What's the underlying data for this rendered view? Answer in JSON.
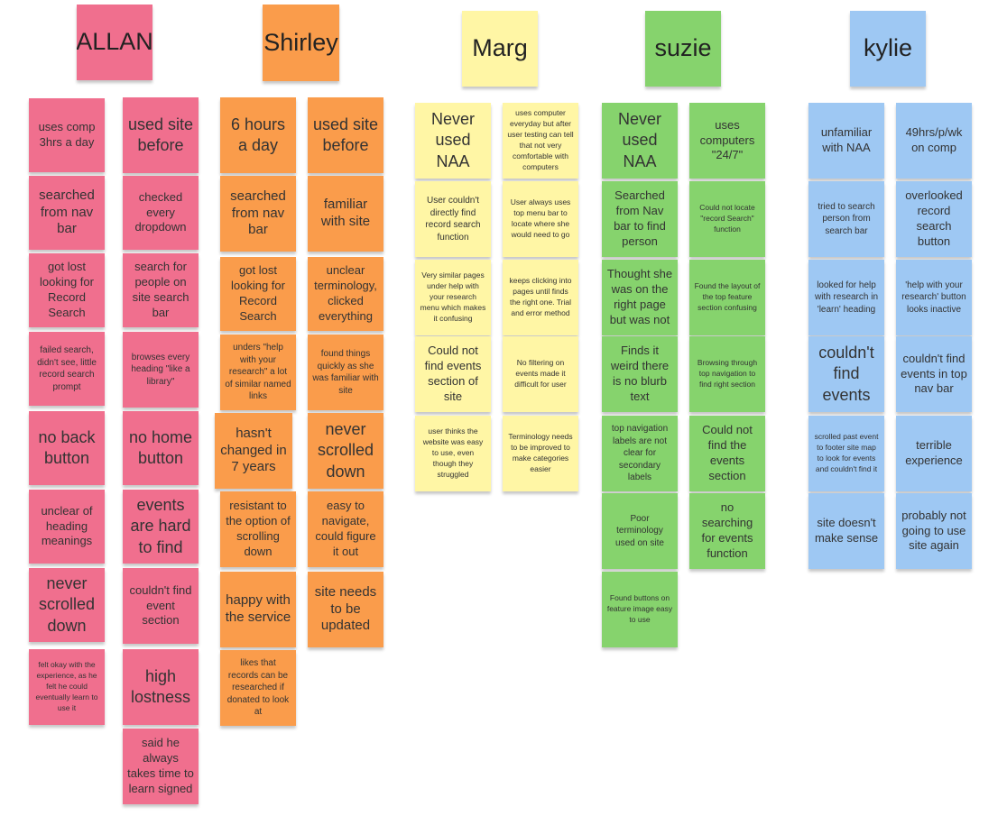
{
  "palette": {
    "allan": "#f06f8e",
    "shirley": "#fa9c4b",
    "marg": "#fff6a5",
    "suzie": "#86d36d",
    "kylie": "#9ec8f3"
  },
  "board": {
    "allan": {
      "name": "ALLAN",
      "col1": [
        "uses comp 3hrs a day",
        "searched from nav bar",
        "got lost looking for Record Search",
        "failed search, didn't see, little record search prompt",
        "no back button",
        "unclear of heading meanings",
        "never scrolled down",
        "felt okay with the experience, as he felt he could eventually learn to use it"
      ],
      "col2": [
        "used site before",
        "checked every dropdown",
        "search for people on site search bar",
        "browses every heading \"like a library\"",
        "no home button",
        "events are hard to find",
        "couldn't find event section",
        "high lostness",
        "said he always takes time to learn signed"
      ]
    },
    "shirley": {
      "name": "Shirley",
      "col1": [
        "6 hours a day",
        "searched from nav bar",
        "got lost looking for Record Search",
        "unders \"help with your research\" a lot of similar named links",
        "hasn't changed in 7 years",
        "resistant to the option of scrolling down",
        "happy with the service",
        "likes that records can be researched if donated to look at"
      ],
      "col2": [
        "used site before",
        "familiar with site",
        "unclear terminology, clicked everything",
        "found things quickly as she was familiar with site",
        "never scrolled down",
        "easy to navigate, could figure it out",
        "site needs to be updated"
      ]
    },
    "marg": {
      "name": "Marg",
      "col1": [
        "Never used NAA",
        "User couldn't directly find record search function",
        "Very similar pages under help with your research menu which makes it confusing",
        "Could not find events section of site",
        "user thinks the website was easy to use, even though they struggled"
      ],
      "col2": [
        "uses computer everyday but after user testing can tell that not very comfortable with computers",
        "User always uses top menu bar to locate where she would need to go",
        "keeps clicking into pages until finds the right one. Trial and error method",
        "No filtering on events made it difficult for user",
        "Terminology needs to be improved to make categories easier"
      ]
    },
    "suzie": {
      "name": "suzie",
      "col1": [
        "Never used NAA",
        "Searched from Nav bar to find person",
        "Thought she was on the right page but was not",
        "Finds it weird there is no blurb text",
        "top navigation labels are not clear for secondary labels",
        "Poor terminology used on site",
        "Found buttons on feature image easy to use"
      ],
      "col2": [
        "uses computers \"24/7\"",
        "Could not locate \"record Search\" function",
        "Found the layout of the top feature section confusing",
        "Browsing through top navigation to find right section",
        "Could not find the events section",
        "no searching for events function"
      ]
    },
    "kylie": {
      "name": "kylie",
      "col1": [
        "unfamiliar with NAA",
        "tried to search person from search bar",
        "looked for help with research in 'learn' heading",
        "couldn't find events",
        "scrolled past event to footer site map to look for events and couldn't find it",
        "site doesn't make sense"
      ],
      "col2": [
        "49hrs/p/wk on comp",
        "overlooked record search button",
        "'help with your research' button looks inactive",
        "couldn't find events in top nav bar",
        "terrible experience",
        "probably not going to use site again"
      ]
    }
  }
}
